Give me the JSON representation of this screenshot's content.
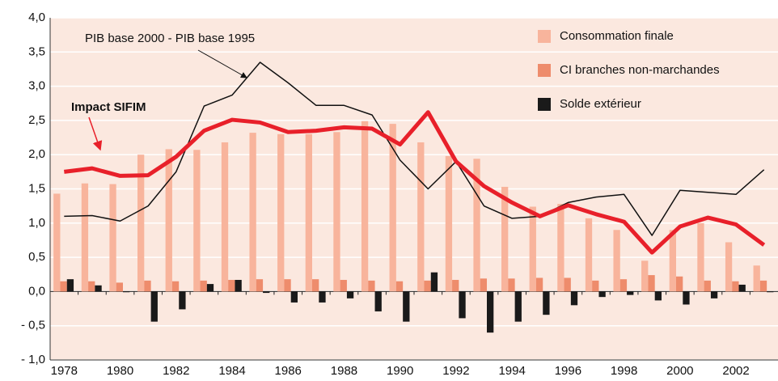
{
  "chart_data": {
    "type": "bar",
    "categories": [
      "1978",
      null,
      "1980",
      null,
      "1982",
      null,
      "1984",
      null,
      "1986",
      null,
      "1988",
      null,
      "1990",
      null,
      "1992",
      null,
      "1994",
      null,
      "1996",
      null,
      "1998",
      null,
      "2000",
      null,
      "2002",
      null
    ],
    "ylim": [
      -1,
      4
    ],
    "yticks": [
      {
        "value": -1,
        "label": "- 1,0"
      },
      {
        "value": -0.5,
        "label": "- 0,5"
      },
      {
        "value": 0,
        "label": "0,0"
      },
      {
        "value": 0.5,
        "label": "0,5"
      },
      {
        "value": 1,
        "label": "1,0"
      },
      {
        "value": 1.5,
        "label": "1,5"
      },
      {
        "value": 2,
        "label": "2,0"
      },
      {
        "value": 2.5,
        "label": "2,5"
      },
      {
        "value": 3,
        "label": "3,0"
      },
      {
        "value": 3.5,
        "label": "3,5"
      },
      {
        "value": 4,
        "label": "4,0"
      }
    ],
    "grid": true,
    "series": [
      {
        "name": "Consommation finale",
        "color": "#f8b49c",
        "values": [
          1.43,
          1.58,
          1.57,
          2.0,
          2.08,
          2.07,
          2.18,
          2.32,
          2.3,
          2.3,
          2.33,
          2.49,
          2.45,
          2.18,
          1.98,
          1.94,
          1.53,
          1.24,
          1.28,
          1.07,
          0.9,
          0.45,
          0.9,
          1.0,
          0.72,
          0.38
        ]
      },
      {
        "name": "CI branches non-marchandes",
        "color": "#ee8c6c",
        "values": [
          0.15,
          0.15,
          0.13,
          0.16,
          0.15,
          0.16,
          0.17,
          0.18,
          0.18,
          0.18,
          0.17,
          0.16,
          0.15,
          0.16,
          0.17,
          0.19,
          0.19,
          0.2,
          0.2,
          0.16,
          0.18,
          0.24,
          0.22,
          0.16,
          0.15,
          0.16
        ]
      },
      {
        "name": "Solde extérieur",
        "color": "#1a1a1a",
        "values": [
          0.18,
          0.09,
          -0.01,
          -0.44,
          -0.26,
          0.11,
          0.17,
          -0.02,
          -0.16,
          -0.16,
          -0.1,
          -0.29,
          -0.44,
          0.28,
          -0.39,
          -0.6,
          -0.44,
          -0.34,
          -0.2,
          -0.08,
          -0.05,
          -0.13,
          -0.19,
          -0.1,
          0.1,
          -0.01
        ]
      },
      {
        "name": "PIB base 2000 - PIB base 1995",
        "type": "line",
        "color": "#111111",
        "values": [
          1.1,
          1.11,
          1.03,
          1.25,
          1.75,
          2.71,
          2.87,
          3.35,
          3.05,
          2.72,
          2.72,
          2.58,
          1.92,
          1.5,
          1.9,
          1.25,
          1.07,
          1.1,
          1.3,
          1.38,
          1.42,
          0.82,
          1.48,
          1.45,
          1.42,
          1.78
        ]
      },
      {
        "name": "Impact SIFIM",
        "type": "line",
        "color": "#e8202a",
        "values": [
          1.75,
          1.8,
          1.69,
          1.7,
          1.97,
          2.35,
          2.51,
          2.47,
          2.33,
          2.35,
          2.4,
          2.38,
          2.15,
          2.62,
          1.9,
          1.54,
          1.3,
          1.1,
          1.26,
          1.13,
          1.02,
          0.57,
          0.95,
          1.08,
          0.98,
          0.68
        ]
      }
    ]
  }
}
